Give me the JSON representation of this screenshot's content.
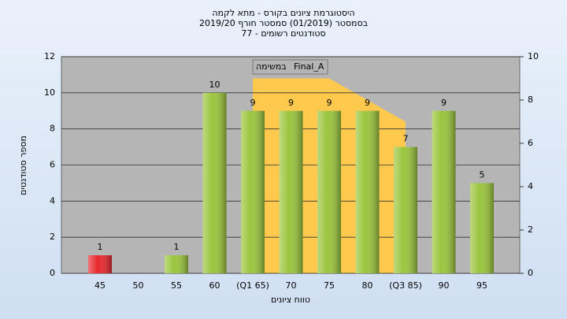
{
  "chart_data": {
    "type": "bar",
    "title": "היסטוגרמת ציונים בקורס - מתא לקמה",
    "subtitle": "בסמסטר  (01/2019)  סמסטר חורף 2019/20",
    "subtitle2": "סטודנטים רשומים - 77",
    "x_label": "טווח ציונים",
    "y_label": "מספר סטודנטים",
    "categories": [
      "45",
      "50",
      "55",
      "60",
      "(Q1 65)",
      "70",
      "75",
      "80",
      "(Q3 85)",
      "90",
      "95"
    ],
    "values": [
      1,
      null,
      1,
      10,
      9,
      9,
      9,
      9,
      7,
      9,
      5
    ],
    "colors": [
      "#e8282e",
      "#9bc53d",
      "#9bc53d",
      "#9bc53d",
      "#9bc53d",
      "#9bc53d",
      "#9bc53d",
      "#9bc53d",
      "#9bc53d",
      "#9bc53d",
      "#9bc53d"
    ],
    "ylim": [
      0,
      12
    ],
    "yticks": [
      0,
      2,
      4,
      6,
      8,
      10,
      12
    ],
    "y2lim": [
      0,
      10
    ],
    "y2ticks": [
      0,
      2,
      4,
      6,
      8,
      10
    ],
    "area": {
      "name": "Final_A",
      "annotation": "במשימה",
      "color": "#ffc94d",
      "axis": "y2",
      "values": [
        null,
        null,
        null,
        null,
        9,
        9,
        9,
        8,
        7,
        null,
        null
      ]
    },
    "grid": true
  }
}
